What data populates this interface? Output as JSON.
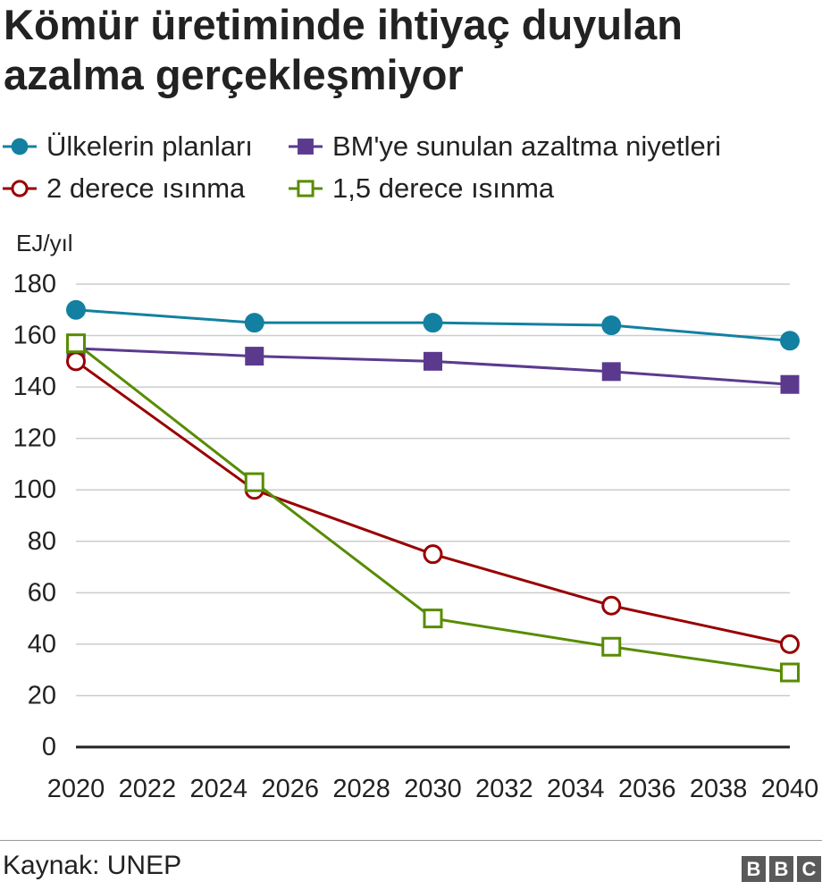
{
  "source": "Kaynak: UNEP",
  "logo": {
    "letters": [
      "B",
      "B",
      "C"
    ],
    "color": "#5a5a5a"
  },
  "chart_data": {
    "type": "line",
    "title": "Kömür üretiminde ihtiyaç duyulan azalma gerçekleşmiyor",
    "xlabel": "",
    "ylabel": "EJ/yıl",
    "x": [
      2020,
      2025,
      2030,
      2035,
      2040
    ],
    "xlim": [
      2020,
      2040
    ],
    "ylim": [
      0,
      180
    ],
    "xticks": [
      "2020",
      "2022",
      "2024",
      "2026",
      "2028",
      "2030",
      "2032",
      "2034",
      "2036",
      "2038",
      "2040"
    ],
    "yticks": [
      "0",
      "20",
      "40",
      "60",
      "80",
      "100",
      "120",
      "140",
      "160",
      "180"
    ],
    "grid": true,
    "legend_position": "top-left",
    "series": [
      {
        "name": "Ülkelerin planları",
        "color": "#1380a1",
        "marker": "filled-circle",
        "values": [
          170,
          165,
          165,
          164,
          158
        ]
      },
      {
        "name": "BM'ye sunulan azaltma niyetleri",
        "color": "#5b3a8e",
        "marker": "filled-square",
        "values": [
          155,
          152,
          150,
          146,
          141
        ]
      },
      {
        "name": "2 derece ısınma",
        "color": "#990000",
        "marker": "open-circle",
        "values": [
          150,
          100,
          75,
          55,
          40
        ]
      },
      {
        "name": "1,5 derece ısınma",
        "color": "#588c00",
        "marker": "open-square",
        "values": [
          157,
          103,
          50,
          39,
          29
        ]
      }
    ]
  }
}
